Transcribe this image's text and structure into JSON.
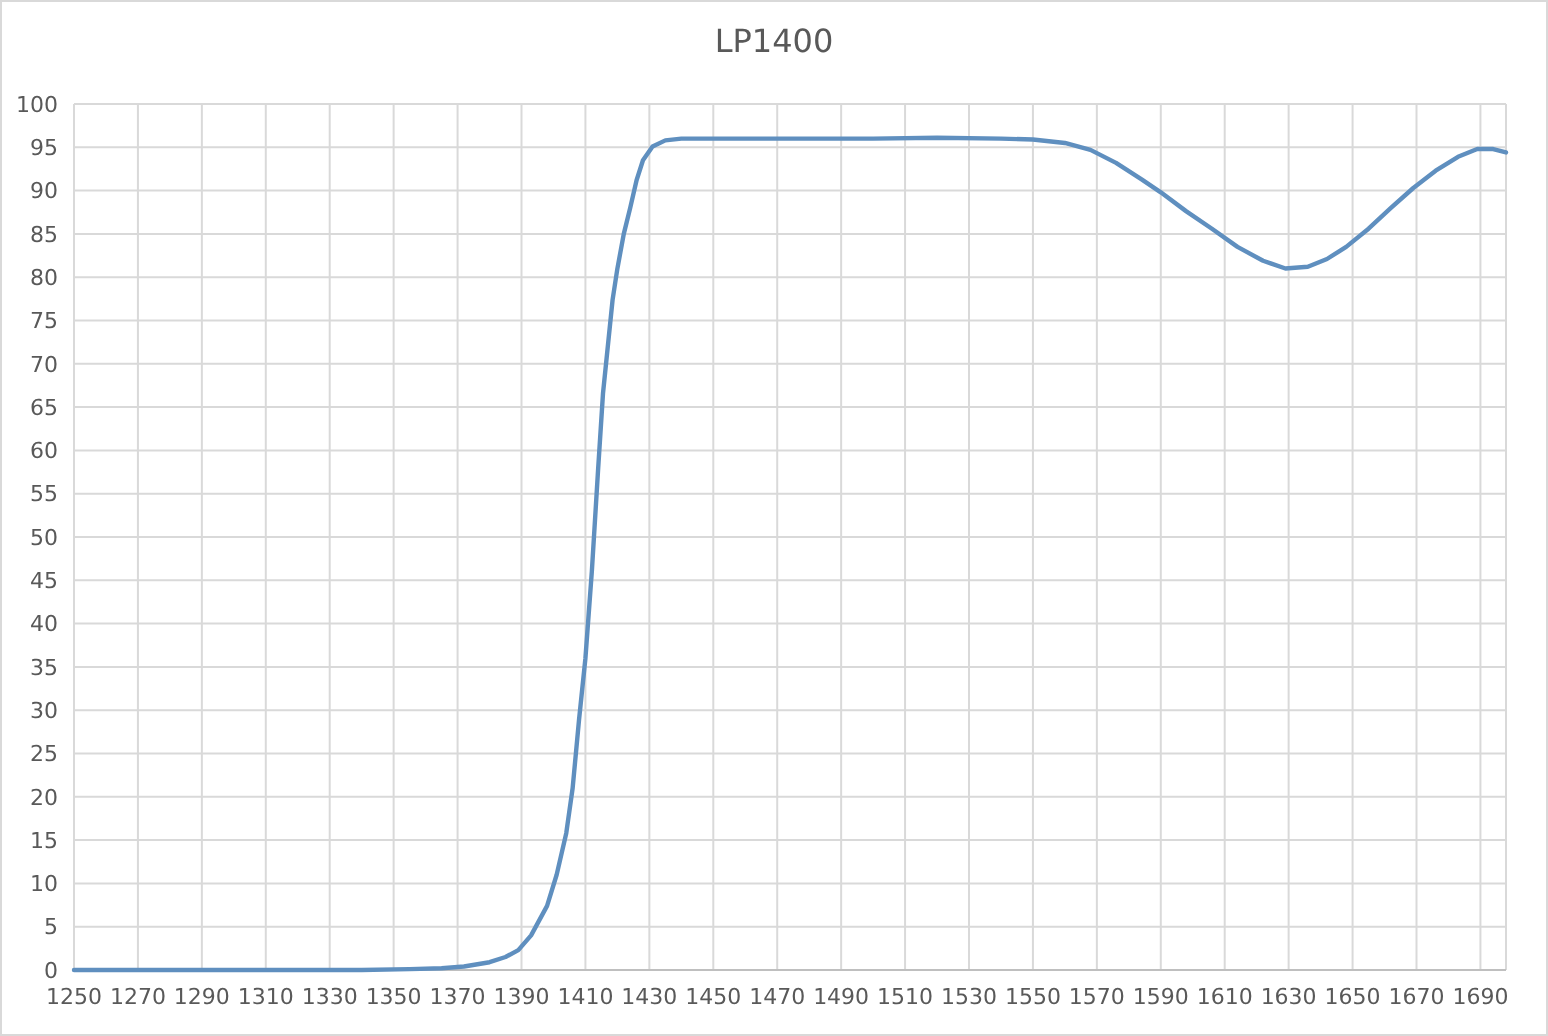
{
  "chart_data": {
    "type": "line",
    "title": "LP1400",
    "series": [
      {
        "color": "#5f8fbf",
        "x": [
          1250,
          1280,
          1310,
          1340,
          1355,
          1365,
          1372,
          1380,
          1385,
          1389,
          1393,
          1398,
          1401,
          1404,
          1406,
          1408,
          1410,
          1412,
          1414,
          1415.5,
          1417,
          1418.5,
          1420,
          1422,
          1424,
          1426,
          1428,
          1431,
          1435,
          1440,
          1460,
          1480,
          1500,
          1520,
          1540,
          1550,
          1560,
          1568,
          1576,
          1584,
          1590,
          1598,
          1606,
          1614,
          1622,
          1629,
          1636,
          1642,
          1648,
          1655,
          1662,
          1669,
          1676,
          1683,
          1689,
          1694,
          1698
        ],
        "values": [
          0,
          0,
          0,
          0,
          0.1,
          0.2,
          0.4,
          0.9,
          1.5,
          2.3,
          4,
          7.4,
          11,
          15.8,
          21,
          28.9,
          36,
          46,
          58,
          66.6,
          72,
          77.4,
          81,
          85,
          88,
          91.2,
          93.5,
          95.1,
          95.8,
          96,
          96,
          96,
          96,
          96.1,
          96,
          95.9,
          95.5,
          94.7,
          93.2,
          91.3,
          89.8,
          87.6,
          85.6,
          83.5,
          81.9,
          81,
          81.2,
          82.1,
          83.5,
          85.6,
          88,
          90.3,
          92.3,
          93.9,
          94.8,
          94.8,
          94.4
        ]
      }
    ],
    "xlim": [
      1250,
      1698
    ],
    "xticks": [
      1250,
      1270,
      1290,
      1310,
      1330,
      1350,
      1370,
      1390,
      1410,
      1430,
      1450,
      1470,
      1490,
      1510,
      1530,
      1550,
      1570,
      1590,
      1610,
      1630,
      1650,
      1670,
      1690
    ],
    "ylim": [
      0,
      100
    ],
    "yticks": [
      0,
      5,
      10,
      15,
      20,
      25,
      30,
      35,
      40,
      45,
      50,
      55,
      60,
      65,
      70,
      75,
      80,
      85,
      90,
      95,
      100
    ],
    "grid": true,
    "marker": "none",
    "line_style": "solid"
  }
}
